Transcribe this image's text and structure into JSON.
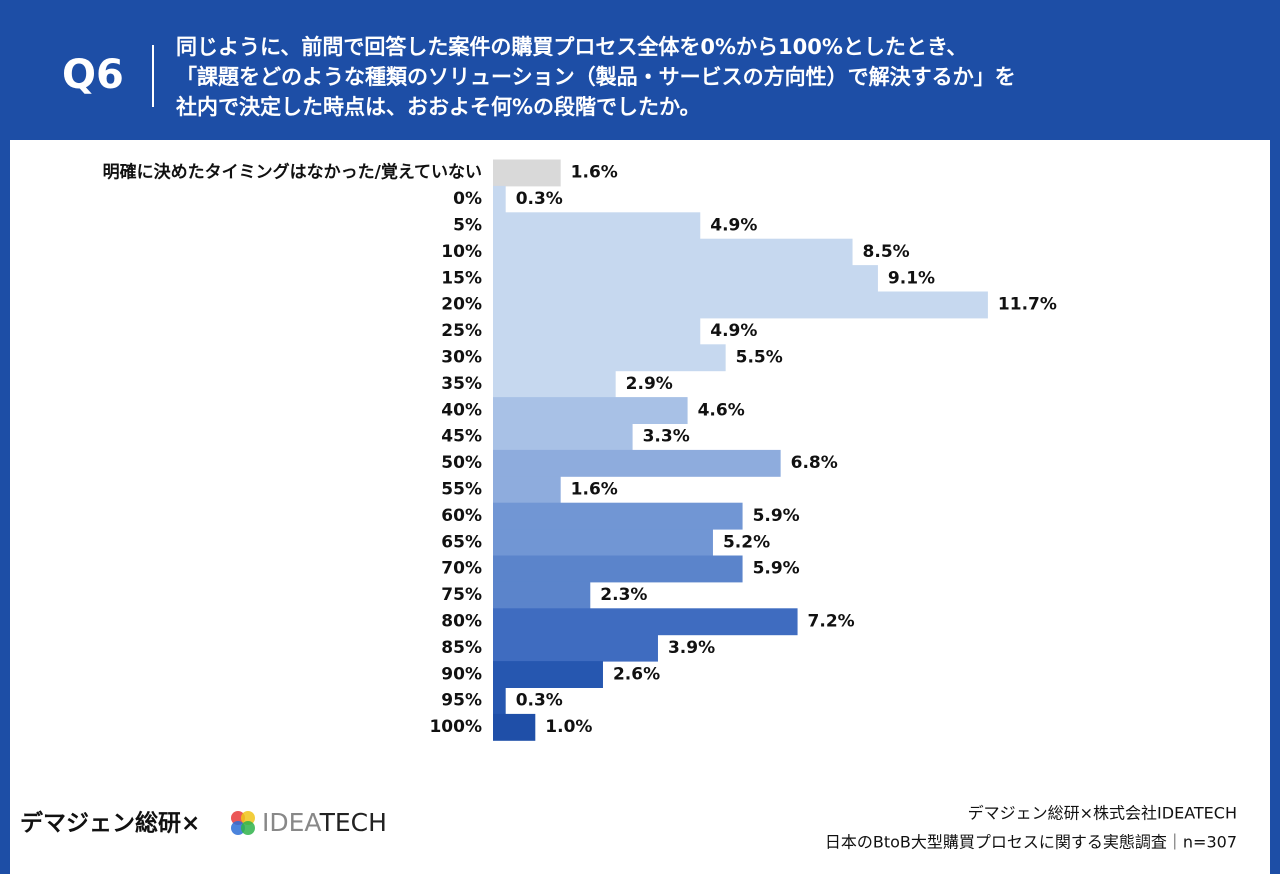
{
  "header": {
    "badge": "Q6",
    "question": [
      "同じように、前問で回答した案件の購買プロセス全体を0%から100%としたとき、",
      "「課題をどのような種類のソリューション（製品・サービスの方向性）で解決するか」を",
      "社内で決定した時点は、おおよそ何%の段階でしたか。"
    ]
  },
  "chart_data": {
    "type": "bar",
    "orientation": "horizontal",
    "categories": [
      "明確に決めたタイミングはなかった/覚えていない",
      "0%",
      "5%",
      "10%",
      "15%",
      "20%",
      "25%",
      "30%",
      "35%",
      "40%",
      "45%",
      "50%",
      "55%",
      "60%",
      "65%",
      "70%",
      "75%",
      "80%",
      "85%",
      "90%",
      "95%",
      "100%"
    ],
    "values": [
      1.6,
      0.3,
      4.9,
      8.5,
      9.1,
      11.7,
      4.9,
      5.5,
      2.9,
      4.6,
      3.3,
      6.8,
      1.6,
      5.9,
      5.2,
      5.9,
      2.3,
      7.2,
      3.9,
      2.6,
      0.3,
      1.0
    ],
    "value_labels": [
      "1.6%",
      "0.3%",
      "4.9%",
      "8.5%",
      "9.1%",
      "11.7%",
      "4.9%",
      "5.5%",
      "2.9%",
      "4.6%",
      "3.3%",
      "6.8%",
      "1.6%",
      "5.9%",
      "5.2%",
      "5.9%",
      "2.3%",
      "7.2%",
      "3.9%",
      "2.6%",
      "0.3%",
      "1.0%"
    ],
    "colors": [
      "#d9d9d9",
      "#c6d8ef",
      "#c6d8ef",
      "#c6d8ef",
      "#c6d8ef",
      "#c6d8ef",
      "#c6d8ef",
      "#c6d8ef",
      "#c6d8ef",
      "#a8c1e6",
      "#a8c1e6",
      "#8eacdd",
      "#8eacdd",
      "#7196d4",
      "#7196d4",
      "#5b84cb",
      "#5b84cb",
      "#3f6cc0",
      "#3f6cc0",
      "#2657b0",
      "#2657b0",
      "#1f4fa8"
    ]
  },
  "footer": {
    "brand": "デマジェン総研×",
    "logo": [
      "IDEA",
      "TECH"
    ],
    "credit": "デマジェン総研×株式会社IDEATECH",
    "survey": "日本のBtoB大型購買プロセスに関する実態調査｜n=307"
  }
}
